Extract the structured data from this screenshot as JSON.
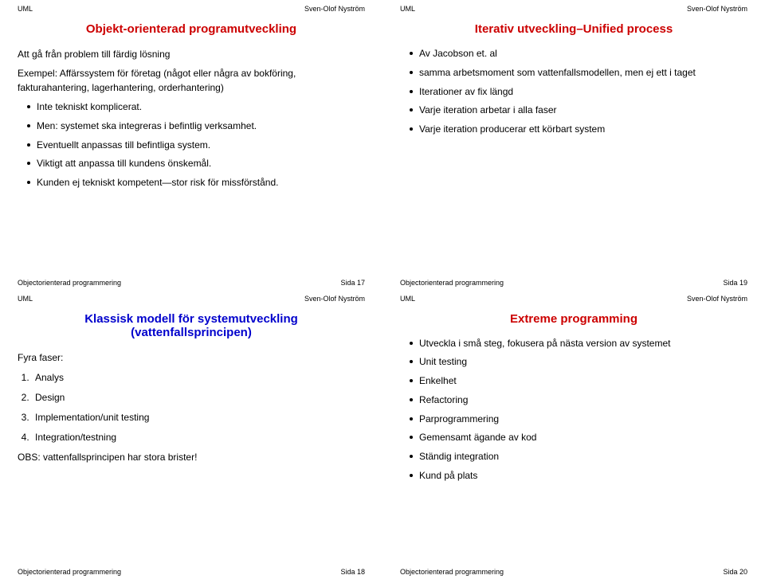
{
  "meta": {
    "hdr_left": "UML",
    "hdr_right": "Sven-Olof Nyström",
    "ftr_left": "Objectorienterad programmering",
    "colors": {
      "red": "#cc0000",
      "blue": "#0000cc",
      "text": "#000000",
      "bg": "#ffffff"
    }
  },
  "s17": {
    "title": "Objekt-orienterad programutveckling",
    "intro1": "Att gå från problem till färdig lösning",
    "intro2": "Exempel: Affärssystem för företag (något eller några av bokföring, fakturahantering, lagerhantering, orderhantering)",
    "bullets": [
      "Inte tekniskt komplicerat.",
      "Men: systemet ska integreras i befintlig verksamhet.",
      "Eventuellt anpassas till befintliga system.",
      "Viktigt att anpassa till kundens önskemål.",
      "Kunden ej tekniskt kompetent—stor risk för missförstånd."
    ],
    "page": "Sida 17"
  },
  "s19": {
    "title": "Iterativ utveckling–Unified process",
    "bullets": [
      "Av Jacobson et. al",
      "samma arbetsmoment som vattenfallsmodellen, men ej ett i taget",
      "Iterationer av fix längd",
      "Varje iteration arbetar i alla faser",
      "Varje iteration producerar ett körbart system"
    ],
    "page": "Sida 19"
  },
  "s18": {
    "title_l1": "Klassisk modell för systemutveckling",
    "title_l2": "(vattenfallsprincipen)",
    "lead": "Fyra faser:",
    "items": [
      "Analys",
      "Design",
      "Implementation/unit testing",
      "Integration/testning"
    ],
    "note": "OBS: vattenfallsprincipen har stora brister!",
    "page": "Sida 18"
  },
  "s20": {
    "title": "Extreme programming",
    "bullets": [
      "Utveckla i små steg, fokusera på nästa version av systemet",
      "Unit testing",
      "Enkelhet",
      "Refactoring",
      "Parprogrammering",
      "Gemensamt ägande av kod",
      "Ständig integration",
      "Kund på plats"
    ],
    "page": "Sida 20"
  }
}
